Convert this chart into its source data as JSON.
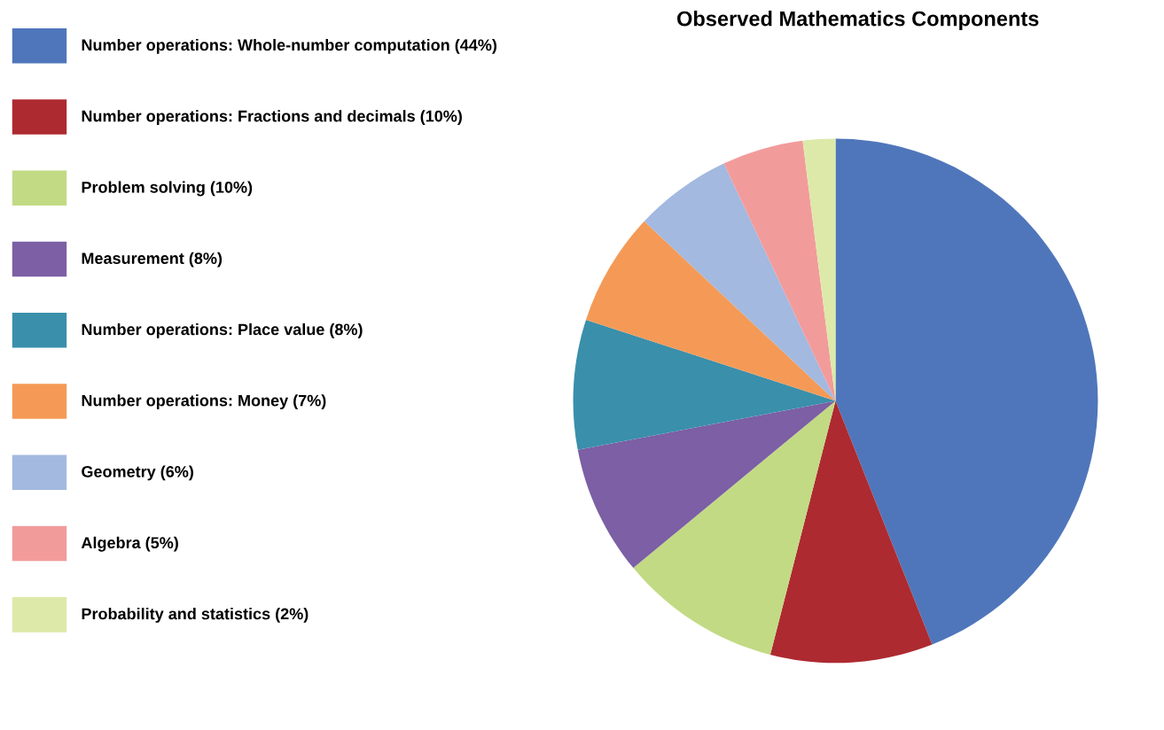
{
  "chart_data": {
    "type": "pie",
    "title": "Observed Mathematics Components",
    "categories": [
      "Number operations: Whole-number computation (44%)",
      "Number operations: Fractions and decimals (10%)",
      "Problem solving (10%)",
      "Measurement (8%)",
      "Number operations: Place value (8%)",
      "Number operations: Money (7%)",
      "Geometry (6%)",
      "Algebra (5%)",
      "Probability and statistics (2%)"
    ],
    "values": [
      44,
      10,
      10,
      8,
      8,
      7,
      6,
      5,
      2
    ],
    "colors": [
      "#4f76bb",
      "#ad2a30",
      "#c2da84",
      "#7c5fa4",
      "#3a8fab",
      "#f49a56",
      "#a3b9e0",
      "#f29b9b",
      "#dde9a9"
    ],
    "legend": "left"
  }
}
